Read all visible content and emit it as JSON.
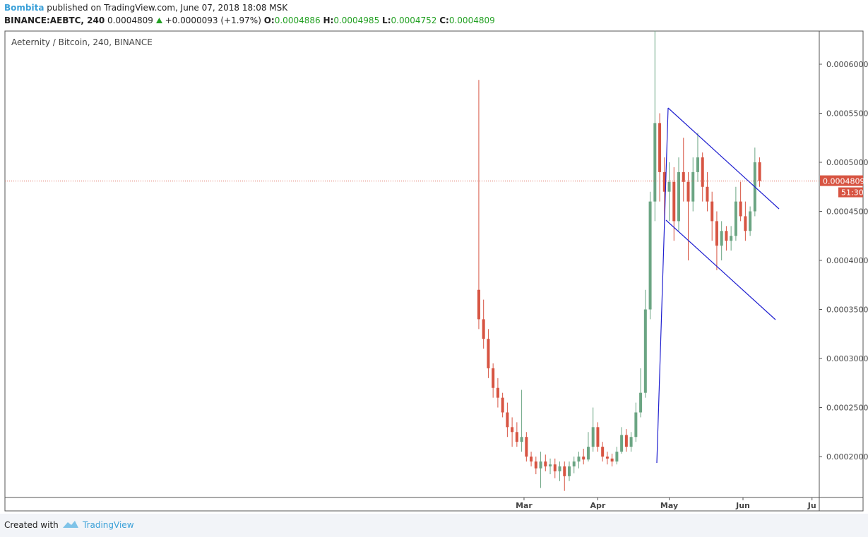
{
  "header": {
    "author": "Bombita",
    "published": "published on TradingView.com, June 07, 2018 18:08 MSK",
    "symbol": "BINANCE:AEBTC, 240",
    "price": "0.0004809",
    "change": "+0.0000093 (+1.97%)",
    "o_label": "O:",
    "o": "0.0004886",
    "h_label": "H:",
    "h": "0.0004985",
    "l_label": "L:",
    "l": "0.0004752",
    "c_label": "C:",
    "c": "0.0004809"
  },
  "chart_data": {
    "type": "candlestick",
    "title": "Aeternity / Bitcoin, 240, BINANCE",
    "x": [
      -19,
      -17,
      -15,
      -13,
      -11,
      -9,
      -7,
      -5,
      -3,
      -1,
      1,
      3,
      5,
      7,
      9,
      11,
      13,
      15,
      17,
      19,
      21,
      23,
      25,
      27,
      29,
      31,
      33,
      35,
      37,
      39,
      41,
      43,
      45,
      47,
      49,
      51,
      53,
      55,
      57,
      59,
      61,
      63,
      65,
      67,
      69,
      71,
      73,
      75,
      77,
      79,
      81,
      83,
      85,
      87,
      89,
      91,
      93,
      95,
      97,
      99
    ],
    "open": [
      0.00037,
      0.00034,
      0.00032,
      0.00029,
      0.00027,
      0.00026,
      0.000245,
      0.00023,
      0.000225,
      0.000215,
      0.00022,
      0.0002,
      0.000195,
      0.000188,
      0.000195,
      0.00019,
      0.000192,
      0.000185,
      0.00019,
      0.00018,
      0.00019,
      0.000195,
      0.0002,
      0.000197,
      0.00021,
      0.00023,
      0.00021,
      0.0002,
      0.000198,
      0.000195,
      0.000205,
      0.000222,
      0.00021,
      0.00022,
      0.000245,
      0.000265,
      0.00035,
      0.00046,
      0.00054,
      0.00049,
      0.00047,
      0.00048,
      0.00044,
      0.00049,
      0.00048,
      0.00046,
      0.00049,
      0.000505,
      0.000475,
      0.00046,
      0.00044,
      0.000415,
      0.00043,
      0.00042,
      0.000425,
      0.00046,
      0.000445,
      0.00043,
      0.00045,
      0.0005
    ],
    "high": [
      0.000584,
      0.00036,
      0.00033,
      0.000295,
      0.00028,
      0.000265,
      0.000255,
      0.00024,
      0.000235,
      0.000268,
      0.000225,
      0.000205,
      0.0002,
      0.000205,
      0.000202,
      0.000198,
      0.000198,
      0.000195,
      0.000195,
      0.000195,
      0.0002,
      0.000205,
      0.000208,
      0.000225,
      0.00025,
      0.000235,
      0.000215,
      0.000205,
      0.000203,
      0.00021,
      0.00023,
      0.000228,
      0.000225,
      0.000255,
      0.00029,
      0.00037,
      0.00047,
      0.000634,
      0.00055,
      0.000505,
      0.0005,
      0.000495,
      0.000505,
      0.000525,
      0.00049,
      0.000505,
      0.00053,
      0.00051,
      0.00049,
      0.00047,
      0.00045,
      0.00044,
      0.000435,
      0.000435,
      0.000475,
      0.00048,
      0.00046,
      0.000455,
      0.000515,
      0.000505
    ],
    "low": [
      0.00033,
      0.00031,
      0.00028,
      0.00026,
      0.00025,
      0.00024,
      0.00022,
      0.00021,
      0.00021,
      0.000205,
      0.000195,
      0.00019,
      0.000182,
      0.000168,
      0.000185,
      0.000182,
      0.000178,
      0.000175,
      0.000165,
      0.000175,
      0.000183,
      0.000188,
      0.000192,
      0.000195,
      0.000205,
      0.000205,
      0.000195,
      0.000192,
      0.00019,
      0.000192,
      0.000203,
      0.000205,
      0.000205,
      0.000215,
      0.00024,
      0.00026,
      0.00034,
      0.00044,
      0.00046,
      0.00044,
      0.00044,
      0.00042,
      0.00043,
      0.00046,
      0.0004,
      0.00045,
      0.00048,
      0.00046,
      0.00045,
      0.00042,
      0.00039,
      0.0004,
      0.00041,
      0.00041,
      0.00042,
      0.00044,
      0.00042,
      0.000425,
      0.000445,
      0.000475
    ],
    "close": [
      0.00034,
      0.00032,
      0.00029,
      0.00027,
      0.00026,
      0.000245,
      0.00023,
      0.000225,
      0.000215,
      0.00022,
      0.0002,
      0.000195,
      0.000188,
      0.000195,
      0.00019,
      0.000192,
      0.000185,
      0.00019,
      0.00018,
      0.00019,
      0.000195,
      0.0002,
      0.000197,
      0.00021,
      0.00023,
      0.00021,
      0.0002,
      0.000198,
      0.000195,
      0.000205,
      0.000222,
      0.00021,
      0.00022,
      0.000245,
      0.000265,
      0.00035,
      0.00046,
      0.00054,
      0.00049,
      0.00047,
      0.00048,
      0.00044,
      0.00049,
      0.00048,
      0.00046,
      0.00049,
      0.000505,
      0.000475,
      0.00046,
      0.00044,
      0.000415,
      0.00043,
      0.00042,
      0.000425,
      0.00046,
      0.000445,
      0.00043,
      0.00045,
      0.0005,
      0.0004809
    ],
    "xlim": [
      -218.1,
      124.05
    ],
    "xticks": [
      {
        "value": 0,
        "label": "Mar"
      },
      {
        "value": 31,
        "label": "Apr"
      },
      {
        "value": 61,
        "label": "May"
      },
      {
        "value": 92,
        "label": "Jun"
      },
      {
        "value": 121,
        "label": "Ju"
      }
    ],
    "ylim": [
      0.0001583,
      0.0006338
    ],
    "yticks": [
      {
        "value": 0.0002,
        "label": "0.0002000"
      },
      {
        "value": 0.00025,
        "label": "0.0002500"
      },
      {
        "value": 0.0003,
        "label": "0.0003000"
      },
      {
        "value": 0.00035,
        "label": "0.0003500"
      },
      {
        "value": 0.0004,
        "label": "0.0004000"
      },
      {
        "value": 0.00045,
        "label": "0.0004500"
      },
      {
        "value": 0.0005,
        "label": "0.0005000"
      },
      {
        "value": 0.00055,
        "label": "0.0005500"
      },
      {
        "value": 0.0006,
        "label": "0.0006000"
      }
    ],
    "up_color": "#6ba583",
    "down_color": "#d75442",
    "last_price": 0.0004809,
    "countdown": "51:30"
  },
  "footer": {
    "created": "Created with",
    "brand": "TradingView"
  }
}
